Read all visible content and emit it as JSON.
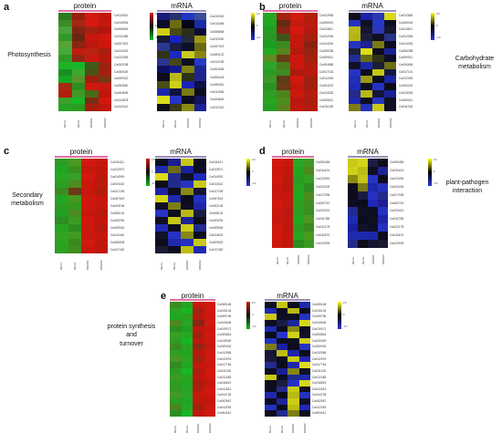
{
  "panels": [
    {
      "letter": "a",
      "category_lines": [
        "Photosynthesis"
      ],
      "protein_title": "protein",
      "mrna_title": "mRNA",
      "protein_genes": [
        "Cw012620",
        "Cw013904",
        "Cw006894",
        "Cw013485",
        "Cw007619",
        "Cw014332",
        "Cw012269",
        "Cw002208",
        "Cw005409",
        "Cw009322",
        "Cw003560",
        "Cw004606",
        "Cw014878",
        "Cw012412"
      ],
      "mrna_genes": [
        "Cw010330",
        "Cw013484",
        "Cw008658",
        "Cw013090",
        "Cw007419",
        "Cw009122",
        "Cw012169",
        "Cw001828",
        "Cw005404",
        "Cw009261",
        "Cw012936",
        "Cw004846",
        "Cw012312"
      ],
      "protein_xlabels": [
        "RHA1",
        "RHA2",
        "DDMH1",
        "DDMH2"
      ],
      "mrna_xlabels": [
        "RHA1",
        "RHA2",
        "DDMH1",
        "DDMH2"
      ],
      "protein_colors": [
        "#2a7a1c",
        "#9a1e0e",
        "#d11a10",
        "#c0170d",
        "#3c8a26",
        "#a32712",
        "#d8190f",
        "#c3180e",
        "#49a13b",
        "#852414",
        "#a71f10",
        "#b3150c",
        "#2f9a27",
        "#6a2612",
        "#c8160c",
        "#d0180e",
        "#56a433",
        "#8b2413",
        "#ba170d",
        "#cf160c",
        "#45a83a",
        "#bf1c0f",
        "#b8230f",
        "#a8200e",
        "#2f9a26",
        "#952513",
        "#c81a0e",
        "#b6170c",
        "#1fb327",
        "#17b628",
        "#3f5c1a",
        "#9e2212",
        "#198f22",
        "#3da92f",
        "#4a5316",
        "#a71e0e",
        "#16a822",
        "#56962a",
        "#a01d0e",
        "#7a3514",
        "#a82a12",
        "#2c8f20",
        "#d0190e",
        "#c7190e",
        "#b1200f",
        "#409925",
        "#4a6a18",
        "#c0160c",
        "#3aa129",
        "#16b724",
        "#7b2d12",
        "#d2180e",
        "#22a324",
        "#2b9b22",
        "#a3200f",
        "#c1170d"
      ],
      "mrna_colors": [
        "#181a77",
        "#27306d",
        "#2236c6",
        "#3b4d9b",
        "#0c0d2c",
        "#6d6b0f",
        "#050515",
        "#1b2ba4",
        "#cfd015",
        "#4a4912",
        "#2b2e18",
        "#0d0d38",
        "#171834",
        "#1822c4",
        "#262a3a",
        "#9a9712",
        "#2a3890",
        "#1a1d42",
        "#0e0f28",
        "#6b6b12",
        "#313312",
        "#1c28c0",
        "#c9cc20",
        "#898712",
        "#2d3490",
        "#464613",
        "#100f22",
        "#2738c6",
        "#0d1064",
        "#151a8e",
        "#7f8313",
        "#1c2590",
        "#0d0d1c",
        "#bab81a",
        "#303214",
        "#1d258c",
        "#4b4c14",
        "#cdd018",
        "#1923b8",
        "#0d0f46",
        "#1927aa",
        "#10133c",
        "#7a7b14",
        "#0c0c1c",
        "#dcdd1a",
        "#2733c4",
        "#0d0d1f",
        "#13135e",
        "#0d0f1c",
        "#3a3b16",
        "#8c8a14",
        "#1d2096"
      ]
    },
    {
      "letter": "b",
      "category_lines": [
        "Carbohydrate",
        "metabolism"
      ],
      "protein_title": "protein",
      "mrna_title": "mRNA",
      "protein_genes": [
        "Cw012983",
        "Cw006019",
        "Cw013811",
        "Cw012094",
        "Cw014281",
        "Cw006258",
        "Cw009011",
        "Cw004686",
        "Cw017152",
        "Cw012053",
        "Cw004202",
        "Cw013252",
        "Cw005011",
        "Cw011248"
      ],
      "mrna_genes": [
        "Cw012882",
        "Cw006018",
        "Cw013811",
        "Cw012084",
        "Cw014281",
        "Cw006258",
        "Cw009011",
        "Cw004684",
        "Cw017151",
        "Cw012053",
        "Cw004202",
        "Cw013252",
        "Cw005011",
        "Cw011248"
      ],
      "protein_xlabels": [
        "RHA1",
        "RHA2",
        "DDMH1",
        "DDMH2"
      ],
      "mrna_xlabels": [
        "RHA1",
        "RHA2",
        "DDMH1",
        "DDMH2"
      ],
      "protein_colors": [
        "#24a822",
        "#a0240f",
        "#d11a10",
        "#b0200f",
        "#1fa821",
        "#632a14",
        "#c6190e",
        "#b71c0e",
        "#239e22",
        "#8a2513",
        "#d5190e",
        "#b41a0e",
        "#2a9624",
        "#40541a",
        "#c5180d",
        "#a51f0f",
        "#1d9c22",
        "#3b8a20",
        "#c3170d",
        "#8b2210",
        "#24a822",
        "#57851d",
        "#b5180d",
        "#962510",
        "#5f8c22",
        "#6a3c17",
        "#ce180d",
        "#a2220f",
        "#2da529",
        "#4a7c1c",
        "#c9180e",
        "#b01d0e",
        "#2c9a24",
        "#3c8c20",
        "#ae1b0e",
        "#b8190d",
        "#3b9a25",
        "#5d3c16",
        "#d0180d",
        "#9e220f",
        "#289224",
        "#6b3a16",
        "#c2180d",
        "#a21f0f",
        "#2f9c23",
        "#4c841c",
        "#cb190e",
        "#b21c0e",
        "#27a621",
        "#4c8f20",
        "#bd170d",
        "#a91e0e",
        "#229f22",
        "#56851d",
        "#bf180d",
        "#b51a0e"
      ],
      "mrna_colors": [
        "#0e0e1e",
        "#1a22a8",
        "#2c36b0",
        "#d8d818",
        "#2230c2",
        "#101020",
        "#2438c6",
        "#0d0e24",
        "#b9b912",
        "#151634",
        "#2b37b4",
        "#141830",
        "#b4b418",
        "#1c1d3c",
        "#0f0f1f",
        "#273489",
        "#2534c0",
        "#1f2190",
        "#7a7b13",
        "#0d0e1e",
        "#1e1f3a",
        "#dcdc1a",
        "#0c0c1a",
        "#1a2090",
        "#202c96",
        "#6a6b12",
        "#2d3416",
        "#0d0d26",
        "#0f1028",
        "#1b28aa",
        "#1d1e38",
        "#6f6d14",
        "#2733c4",
        "#0d0d1c",
        "#c6c816",
        "#151840",
        "#2030b8",
        "#9a9a12",
        "#0d0d20",
        "#1a26a4",
        "#1e2ab8",
        "#0e0f22",
        "#2432c0",
        "#0c0c18",
        "#242a8c",
        "#b8b818",
        "#141634",
        "#1a2296",
        "#1e27b4",
        "#0d0e22",
        "#2536c2",
        "#101022",
        "#7c7c14",
        "#2430c0",
        "#c9c918",
        "#101026"
      ]
    },
    {
      "letter": "c",
      "category_lines": [
        "Secondary",
        "metabolism"
      ],
      "protein_title": "protein",
      "mrna_title": "mRNA",
      "protein_genes": [
        "Cw011621",
        "Cw012972",
        "Cw014991",
        "Cw013410",
        "Cw017236",
        "Cw007619",
        "Cw003106",
        "Cw006130",
        "Cw009294",
        "Cw009924",
        "Cw012461",
        "Cw006528",
        "Cw017402"
      ],
      "mrna_genes": [
        "Cw011621",
        "Cw013971",
        "Cw014991",
        "Cw013412",
        "Cw017228",
        "Cw007619",
        "Cw002106",
        "Cw008130",
        "Cw009294",
        "Cw009928",
        "Cw014603",
        "Cw009523",
        "Cw017452"
      ],
      "protein_xlabels": [
        "RHA1",
        "RHA2",
        "DDMH1",
        "DDMH2"
      ],
      "mrna_xlabels": [
        "RHA1",
        "RHA2",
        "DDMH1",
        "DDMH2"
      ],
      "protein_colors": [
        "#2a9c24",
        "#4a9a22",
        "#d4170e",
        "#c4180d",
        "#1fa722",
        "#3a8e20",
        "#c8170d",
        "#c1180d",
        "#28a623",
        "#36a025",
        "#d3180e",
        "#be190d",
        "#2c9e22",
        "#4c8c20",
        "#cc170d",
        "#ba1b0e",
        "#3c8b22",
        "#6b3a16",
        "#c6180d",
        "#b21c0e",
        "#22a622",
        "#4a9620",
        "#cd180d",
        "#c4170d",
        "#2c9c23",
        "#36991f",
        "#d1170d",
        "#c7180e",
        "#1fa020",
        "#4a8a1f",
        "#c5170d",
        "#b9190e",
        "#2a8e22",
        "#3c9a22",
        "#d0180e",
        "#c3170d",
        "#27a422",
        "#2f8c22",
        "#cb180d",
        "#b8190e",
        "#36a026",
        "#409a22",
        "#c8170d",
        "#c2180d",
        "#2aa423",
        "#3b8a1f",
        "#d3190e",
        "#bd190d",
        "#2da024",
        "#418e20",
        "#c9170d",
        "#c0170d"
      ],
      "mrna_colors": [
        "#0d0d1e",
        "#1c1d90",
        "#c7c716",
        "#0c0c1a",
        "#1d2aae",
        "#6b6d12",
        "#1b20a0",
        "#0d0d24",
        "#dcdc18",
        "#232b8c",
        "#101024",
        "#1e29b6",
        "#0c0c1a",
        "#232a86",
        "#2531c2",
        "#c9c918",
        "#1d24a6",
        "#0c0d1c",
        "#8a8a14",
        "#151634",
        "#d6d618",
        "#1e28aa",
        "#0d0d1e",
        "#2232be",
        "#101020",
        "#7c7d13",
        "#0d0e22",
        "#1e27ac",
        "#2733c4",
        "#0d0d1e",
        "#b8b816",
        "#1a1c42",
        "#101022",
        "#c5c518",
        "#1d2596",
        "#0c0c1c",
        "#1e2bb2",
        "#0c0c1c",
        "#cdcd18",
        "#202a8e",
        "#11122a",
        "#2533c2",
        "#878714",
        "#0d0d1e",
        "#0d0d1e",
        "#1f2aaa",
        "#2430c0",
        "#c8c816",
        "#1a1a32",
        "#0d0d20",
        "#bcbc16",
        "#202ab0"
      ]
    },
    {
      "letter": "d",
      "category_lines": [
        "plant-pathogen",
        "interaction"
      ],
      "protein_title": "protein",
      "mrna_title": "mRNA",
      "protein_genes": [
        "Cw009484",
        "Cw011404",
        "Cw013281",
        "Cw012432",
        "Cw017936",
        "Cw002710",
        "Cw019421",
        "Cw011788",
        "Cw012178",
        "Cw011879",
        "Cw012993"
      ],
      "mrna_genes": [
        "Cw009484",
        "Cw011404",
        "Cw013281",
        "Cw012432",
        "Cw017935",
        "Cw002710",
        "Cw019421",
        "Cw011788",
        "Cw012178",
        "Cw011870",
        "Cw012993"
      ],
      "protein_xlabels": [
        "RHA1",
        "RHA2",
        "DDMH1",
        "DDMH2"
      ],
      "mrna_xlabels": [
        "RHA1",
        "RHA2",
        "DDMH1",
        "DDMH2"
      ],
      "protein_colors": [
        "#d4170e",
        "#c7180d",
        "#2aa424",
        "#3c9a22",
        "#cc170d",
        "#c0180d",
        "#22a622",
        "#4a8a1f",
        "#d0180e",
        "#ba190e",
        "#2a9c23",
        "#36a025",
        "#c8170d",
        "#b8190e",
        "#27a421",
        "#2f8c22",
        "#c9170d",
        "#c4170d",
        "#1fa722",
        "#4c8c20",
        "#d3180e",
        "#c2180d",
        "#2da024",
        "#418e20",
        "#cb180d",
        "#b9190e",
        "#2c9e22",
        "#3a8e20",
        "#c6180d",
        "#bd190d",
        "#24a823",
        "#4a9620",
        "#ce180d",
        "#be170d",
        "#2c9c22",
        "#3b8a1f",
        "#d1170d",
        "#c3170d",
        "#28a623",
        "#4a9a22",
        "#cd180d",
        "#c0170d",
        "#2a8e22",
        "#3c9a22"
      ],
      "mrna_colors": [
        "#c9c916",
        "#d6d618",
        "#1c1d40",
        "#0d0d1e",
        "#d0d018",
        "#bcbc16",
        "#101024",
        "#1d2596",
        "#8a8a14",
        "#c5c518",
        "#2733c4",
        "#0d0d1e",
        "#0d0d1e",
        "#7c7d13",
        "#1e28aa",
        "#2432c0",
        "#0c0c1c",
        "#1a1c42",
        "#2531c2",
        "#232b8c",
        "#0d0d22",
        "#0c0c1a",
        "#1e29b6",
        "#1c1d90",
        "#202a8e",
        "#101022",
        "#0d0e22",
        "#2232be",
        "#1e2bb2",
        "#0c0d1c",
        "#101020",
        "#1d24a6",
        "#1b20a0",
        "#11122a",
        "#0d0d24",
        "#2430c0",
        "#202ab0",
        "#1d2aae",
        "#1e27ac",
        "#0d0d1e",
        "#232a86",
        "#0c0c1a",
        "#151634",
        "#1a1a32"
      ]
    },
    {
      "letter": "e",
      "category_lines": [
        "protein synthesis",
        "and",
        "turnover"
      ],
      "protein_title": "protein",
      "mrna_title": "mRNA",
      "protein_genes": [
        "Cw005148",
        "Cw015134",
        "Cw009796",
        "Cw019606",
        "Cw019071",
        "Cw005844",
        "Cw015349",
        "Cw009402",
        "Cw012565",
        "Cw012976",
        "Cw017764",
        "Cw011128",
        "Cw012483",
        "Cw016819",
        "Cw012813",
        "Cw014728",
        "Cw002967",
        "Cw012093",
        "Cw004412"
      ],
      "mrna_genes": [
        "Cw005148",
        "Cw015134",
        "Cw009796",
        "Cw019606",
        "Cw019071",
        "Cw005844",
        "Cw015349",
        "Cw009402",
        "Cw012565",
        "Cw012976",
        "Cw017764",
        "Cw011128",
        "Cw012483",
        "Cw016819",
        "Cw012813",
        "Cw014728",
        "Cw002967",
        "Cw012093",
        "Cw004412"
      ],
      "protein_xlabels": [
        "RHA1",
        "RHA2",
        "DDMH1",
        "DDMH2"
      ],
      "mrna_xlabels": [
        "RHA1",
        "RHA2",
        "DDMH1",
        "DDMH2"
      ],
      "protein_colors": [
        "#3c8c20",
        "#22a622",
        "#c8170d",
        "#d0180e",
        "#2aa424",
        "#16b724",
        "#a5200f",
        "#d4170e",
        "#1fa722",
        "#2c9e22",
        "#b8190e",
        "#cc170d",
        "#4a8a1f",
        "#27a421",
        "#8b2413",
        "#d3180e",
        "#2a8e22",
        "#1fa020",
        "#c3170d",
        "#c9170d",
        "#36a025",
        "#24a823",
        "#a71e0e",
        "#d1170d",
        "#2c9c22",
        "#16b724",
        "#c0170d",
        "#cb180d",
        "#3b8a1f",
        "#28a623",
        "#952513",
        "#c6180d",
        "#2da024",
        "#22a622",
        "#b9190e",
        "#d0180e",
        "#4a9620",
        "#2aa424",
        "#a2220f",
        "#cd180d",
        "#2f8c22",
        "#1fa722",
        "#c2180d",
        "#c8170d",
        "#2a9c23",
        "#16b724",
        "#b21c0e",
        "#d3180e",
        "#3c9a22",
        "#27a421",
        "#be170d",
        "#ce180d",
        "#2c9e22",
        "#22a622",
        "#a91e0e",
        "#c4170d",
        "#36991f",
        "#2aa424",
        "#b41a0e",
        "#d0180e",
        "#409925",
        "#28a623",
        "#c7180e",
        "#cf160c",
        "#2c9c22",
        "#1fa722",
        "#bd190d",
        "#c1170d",
        "#4c841c",
        "#24a823",
        "#a51f0f",
        "#cb180d",
        "#2a8e22",
        "#16b724",
        "#c0170d",
        "#d2180e"
      ],
      "mrna_colors": [
        "#101022",
        "#c5c518",
        "#0d0d1e",
        "#1e28aa",
        "#1e29b6",
        "#0d0d1e",
        "#b8b816",
        "#0c0c1c",
        "#c9c916",
        "#101024",
        "#0d0e22",
        "#2430c0",
        "#0d0d24",
        "#1a1c42",
        "#1d2596",
        "#d6d618",
        "#1e2bb2",
        "#0c0c1a",
        "#8a8a14",
        "#0d0d1e",
        "#0c0c1c",
        "#2733c4",
        "#d0d018",
        "#11122a",
        "#2232be",
        "#0d0e22",
        "#101020",
        "#cdcd18",
        "#7c7d13",
        "#1b20a0",
        "#0d0d1e",
        "#2531c2",
        "#151634",
        "#bcbc16",
        "#1d24a6",
        "#0c0c1a",
        "#1a1a32",
        "#0d0d20",
        "#c8c816",
        "#202ab0",
        "#232b8c",
        "#0c0d1c",
        "#1e27ac",
        "#dcdc18",
        "#0d0d1e",
        "#1c1d90",
        "#878714",
        "#101024",
        "#c7c716",
        "#0d0d24",
        "#202a8e",
        "#1d2aae",
        "#0c0c1c",
        "#1a1c42",
        "#2531c2",
        "#d6d618",
        "#0d0d1e",
        "#232a86",
        "#c9c918",
        "#101020",
        "#1e28aa",
        "#0c0c1a",
        "#b8b816",
        "#2430c0",
        "#0d0d22",
        "#1d2596",
        "#cdcd18",
        "#101022",
        "#2232be",
        "#0c0c1c",
        "#bcbc16",
        "#1e29b6",
        "#0d0d1e",
        "#232b8c",
        "#7c7d13",
        "#0d0e22"
      ]
    }
  ],
  "protein_scale": {
    "top": "2.0",
    "mid": "0",
    "bottom": "-2.0",
    "colors": [
      "#d4170e",
      "#111111",
      "#16b724"
    ]
  },
  "mrna_scale": {
    "top": "2.0",
    "mid": "0",
    "bottom": "-2.0",
    "colors": [
      "#ffff00",
      "#000000",
      "#2b38d4"
    ]
  }
}
